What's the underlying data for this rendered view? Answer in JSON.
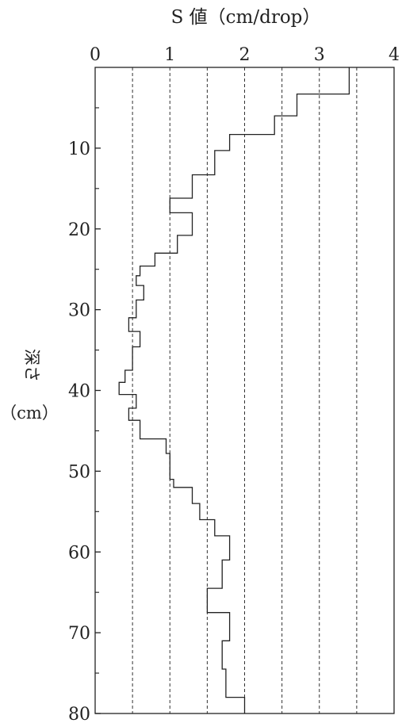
{
  "chart_data": {
    "type": "line",
    "xlabel": "S 値（cm/drop）",
    "ylabel_lines": [
      "深さ",
      "（cm）"
    ],
    "xlim": [
      0,
      4
    ],
    "ylim": [
      0,
      80
    ],
    "y_inverted": true,
    "x_axis_position": "top",
    "x_ticks": [
      0,
      1,
      2,
      3,
      4
    ],
    "x_tick_labels": [
      "0",
      "1",
      "2",
      "3",
      "4"
    ],
    "x_dashed_gridlines": [
      0.5,
      1,
      1.5,
      2,
      2.5,
      3,
      3.5,
      4
    ],
    "y_ticks": [
      10,
      20,
      30,
      40,
      50,
      60,
      70,
      80
    ],
    "y_tick_labels": [
      "10",
      "20",
      "30",
      "40",
      "50",
      "60",
      "70",
      "80"
    ],
    "y_minor_ticks": [
      5,
      15,
      25,
      35,
      45,
      55,
      65,
      75
    ],
    "grid": "vertical dashed",
    "profile": {
      "description": "step profile: each entry is a depth interval [from, to] in cm with S value",
      "steps": [
        {
          "from": 0,
          "to": 3.3,
          "s": 3.4
        },
        {
          "from": 3.3,
          "to": 6.0,
          "s": 2.7
        },
        {
          "from": 6.0,
          "to": 8.3,
          "s": 2.4
        },
        {
          "from": 8.3,
          "to": 10.3,
          "s": 1.8
        },
        {
          "from": 10.3,
          "to": 13.3,
          "s": 1.6
        },
        {
          "from": 13.3,
          "to": 16.2,
          "s": 1.3
        },
        {
          "from": 16.2,
          "to": 18.0,
          "s": 1.0
        },
        {
          "from": 18.0,
          "to": 20.8,
          "s": 1.3
        },
        {
          "from": 20.8,
          "to": 23.0,
          "s": 1.1
        },
        {
          "from": 23.0,
          "to": 24.6,
          "s": 0.8
        },
        {
          "from": 24.6,
          "to": 25.8,
          "s": 0.6
        },
        {
          "from": 25.8,
          "to": 27.0,
          "s": 0.55
        },
        {
          "from": 27.0,
          "to": 28.8,
          "s": 0.65
        },
        {
          "from": 28.8,
          "to": 31.0,
          "s": 0.55
        },
        {
          "from": 31.0,
          "to": 32.7,
          "s": 0.45
        },
        {
          "from": 32.7,
          "to": 34.6,
          "s": 0.6
        },
        {
          "from": 34.6,
          "to": 37.5,
          "s": 0.5
        },
        {
          "from": 37.5,
          "to": 39.0,
          "s": 0.4
        },
        {
          "from": 39.0,
          "to": 40.5,
          "s": 0.32
        },
        {
          "from": 40.5,
          "to": 42.2,
          "s": 0.55
        },
        {
          "from": 42.2,
          "to": 43.7,
          "s": 0.45
        },
        {
          "from": 43.7,
          "to": 46.0,
          "s": 0.6
        },
        {
          "from": 46.0,
          "to": 47.8,
          "s": 0.95
        },
        {
          "from": 47.8,
          "to": 51.0,
          "s": 1.0
        },
        {
          "from": 51.0,
          "to": 52.0,
          "s": 1.05
        },
        {
          "from": 52.0,
          "to": 54.0,
          "s": 1.3
        },
        {
          "from": 54.0,
          "to": 56.0,
          "s": 1.4
        },
        {
          "from": 56.0,
          "to": 58.0,
          "s": 1.6
        },
        {
          "from": 58.0,
          "to": 61.0,
          "s": 1.8
        },
        {
          "from": 61.0,
          "to": 64.5,
          "s": 1.7
        },
        {
          "from": 64.5,
          "to": 67.5,
          "s": 1.5
        },
        {
          "from": 67.5,
          "to": 71.0,
          "s": 1.8
        },
        {
          "from": 71.0,
          "to": 74.5,
          "s": 1.7
        },
        {
          "from": 74.5,
          "to": 78.0,
          "s": 1.75
        },
        {
          "from": 78.0,
          "to": 80.0,
          "s": 2.0
        }
      ]
    }
  }
}
